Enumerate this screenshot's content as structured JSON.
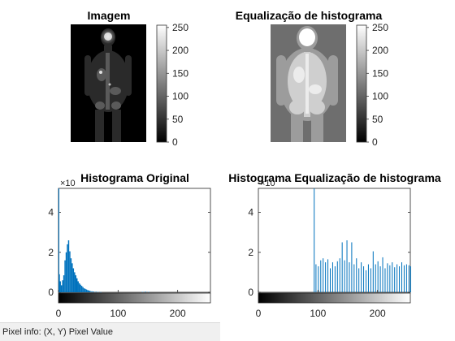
{
  "figure": {
    "panels": [
      {
        "id": "image-original",
        "title": "Imagem",
        "colorbar_ticks": [
          "250",
          "200",
          "150",
          "100",
          "50",
          "0"
        ]
      },
      {
        "id": "image-equalized",
        "title": "Equalização de histograma",
        "colorbar_ticks": [
          "250",
          "200",
          "150",
          "100",
          "50",
          "0"
        ]
      }
    ]
  },
  "chart_data": [
    {
      "type": "bar",
      "title": "Histograma Original",
      "y_multiplier": "×10",
      "xlim": [
        0,
        255
      ],
      "ylim": [
        0,
        5.2
      ],
      "xticks": [
        "0",
        "100",
        "200"
      ],
      "yticks": [
        "0",
        "2",
        "4"
      ],
      "series_color": "#0072bd",
      "spikes": [
        [
          0,
          5.2
        ],
        [
          1,
          0.9
        ]
      ],
      "x": [
        2,
        4,
        6,
        8,
        10,
        12,
        14,
        16,
        18,
        20,
        22,
        24,
        26,
        28,
        30,
        32,
        34,
        36,
        38,
        40,
        42,
        44,
        46,
        48,
        50,
        52,
        55,
        58,
        62,
        66,
        70,
        140,
        145,
        150
      ],
      "values": [
        0.55,
        0.35,
        0.6,
        0.85,
        1.6,
        2.0,
        2.4,
        2.6,
        2.05,
        1.7,
        1.45,
        1.2,
        1.0,
        0.85,
        0.7,
        0.55,
        0.45,
        0.38,
        0.32,
        0.26,
        0.2,
        0.17,
        0.14,
        0.11,
        0.09,
        0.07,
        0.05,
        0.04,
        0.03,
        0.02,
        0.01,
        0.02,
        0.03,
        0.02
      ]
    },
    {
      "type": "bar",
      "title": "Histograma Equalização de histograma",
      "y_multiplier": "×10",
      "xlim": [
        0,
        255
      ],
      "ylim": [
        0,
        5.2
      ],
      "xticks": [
        "0",
        "100",
        "200"
      ],
      "yticks": [
        "0",
        "2",
        "4"
      ],
      "series_color": "#0072bd",
      "x": [
        93,
        96,
        100,
        104,
        108,
        112,
        116,
        120,
        124,
        128,
        132,
        136,
        140,
        144,
        148,
        152,
        156,
        160,
        164,
        168,
        172,
        176,
        180,
        184,
        188,
        192,
        196,
        200,
        204,
        208,
        212,
        216,
        220,
        224,
        228,
        232,
        236,
        240,
        244,
        248,
        252,
        255
      ],
      "values": [
        5.2,
        1.4,
        1.3,
        1.6,
        1.7,
        1.5,
        1.65,
        1.2,
        1.5,
        1.3,
        1.55,
        1.7,
        2.5,
        1.6,
        2.6,
        1.5,
        2.5,
        1.4,
        1.7,
        1.2,
        1.5,
        1.3,
        1.1,
        1.4,
        1.2,
        2.05,
        1.4,
        1.55,
        1.3,
        1.75,
        1.2,
        1.45,
        1.35,
        1.5,
        1.25,
        1.4,
        1.3,
        1.5,
        1.35,
        1.4,
        1.35,
        1.3
      ]
    }
  ],
  "statusbar": {
    "text": "Pixel info: (X, Y)  Pixel Value"
  }
}
